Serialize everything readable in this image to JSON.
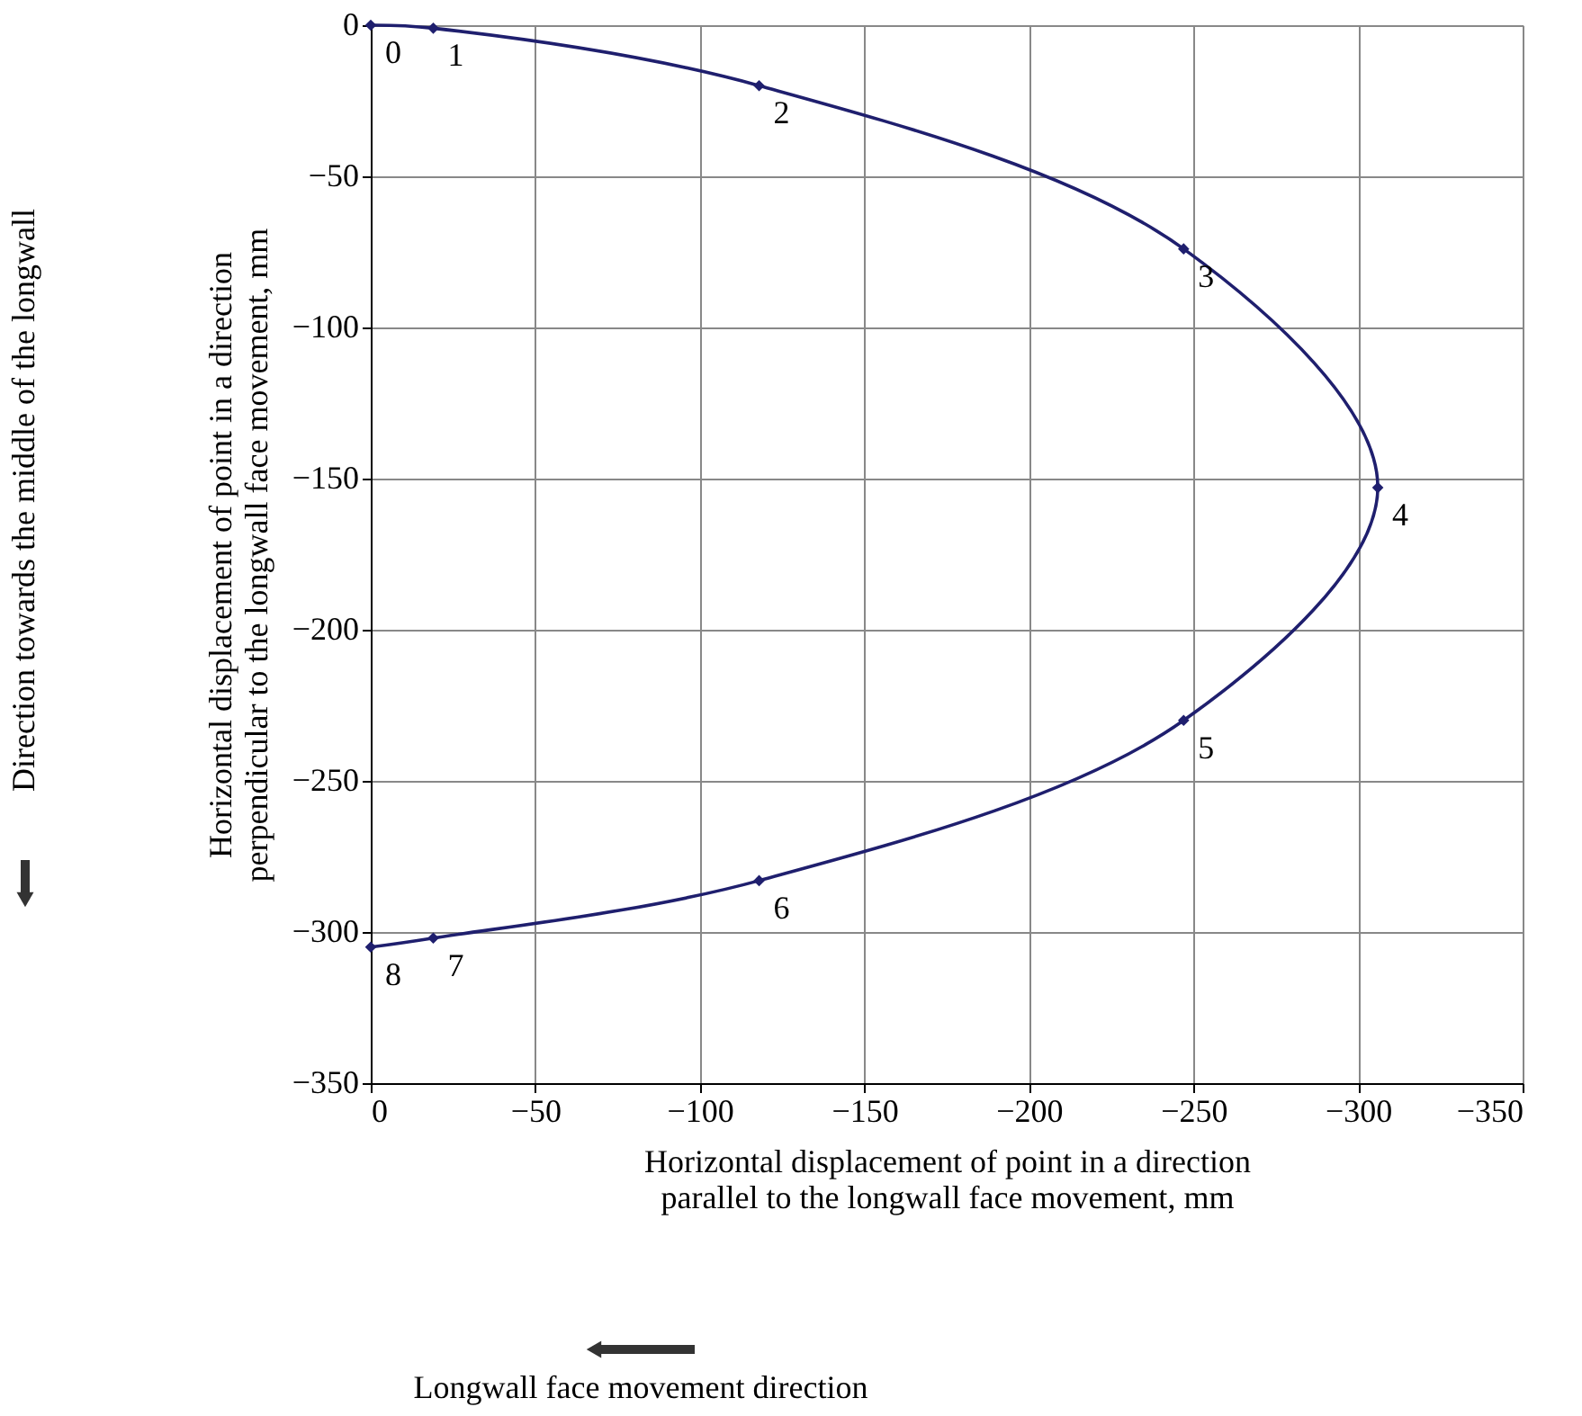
{
  "chart_data": {
    "type": "line",
    "x": [
      0,
      -19,
      -118,
      -247,
      -306,
      -247,
      -118,
      -19,
      0
    ],
    "series": [
      {
        "color": "#1f1f6e",
        "values": [
          0,
          -1,
          -20,
          -74,
          -153,
          -230,
          -283,
          -302,
          -305
        ]
      }
    ],
    "xlabel": "Horizontal displacement of  point in a direction parallel to the longwall face movement, mm",
    "ylabel": "Horizontal displacement of  point in a direction perpendicular to the longwall face movement, mm",
    "xlim": [
      0,
      -350
    ],
    "xticks": [
      0,
      -50,
      -100,
      -150,
      -200,
      -250,
      -300,
      -350
    ],
    "ylim": [
      -350,
      0
    ],
    "yticks": [
      0,
      -50,
      -100,
      -150,
      -200,
      -250,
      -300,
      -350
    ],
    "grid": true,
    "marker": "diamond",
    "line_style": "solid",
    "annotations": [
      {
        "text": "0",
        "x": 0,
        "y": 0
      },
      {
        "text": "1",
        "x": -19,
        "y": -1
      },
      {
        "text": "2",
        "x": -118,
        "y": -20
      },
      {
        "text": "3",
        "x": -247,
        "y": -74
      },
      {
        "text": "4",
        "x": -306,
        "y": -153
      },
      {
        "text": "5",
        "x": -247,
        "y": -230
      },
      {
        "text": "6",
        "x": -118,
        "y": -283
      },
      {
        "text": "7",
        "x": -19,
        "y": -302
      },
      {
        "text": "8",
        "x": 0,
        "y": -305
      },
      "Direction towards the middle of the longwall",
      "Longwall face movement direction"
    ]
  }
}
